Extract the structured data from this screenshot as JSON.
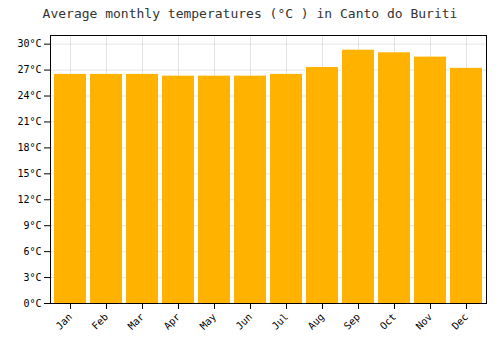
{
  "chart_data": {
    "type": "bar",
    "title": "Average monthly temperatures (°C ) in Canto do Buriti",
    "categories": [
      "Jan",
      "Feb",
      "Mar",
      "Apr",
      "May",
      "Jun",
      "Jul",
      "Aug",
      "Sep",
      "Oct",
      "Nov",
      "Dec"
    ],
    "values": [
      26.5,
      26.5,
      26.5,
      26.3,
      26.3,
      26.3,
      26.5,
      27.3,
      29.3,
      29.0,
      28.5,
      27.2
    ],
    "color": "#FFB300",
    "ylim": [
      0,
      31
    ],
    "yticks": [
      {
        "value": 0,
        "label": "0°C"
      },
      {
        "value": 3,
        "label": "3°C"
      },
      {
        "value": 6,
        "label": "6°C"
      },
      {
        "value": 9,
        "label": "9°C"
      },
      {
        "value": 12,
        "label": "12°C"
      },
      {
        "value": 15,
        "label": "15°C"
      },
      {
        "value": 18,
        "label": "18°C"
      },
      {
        "value": 21,
        "label": "21°C"
      },
      {
        "value": 24,
        "label": "24°C"
      },
      {
        "value": 27,
        "label": "27°C"
      },
      {
        "value": 30,
        "label": "30°C"
      }
    ],
    "grid": true
  }
}
